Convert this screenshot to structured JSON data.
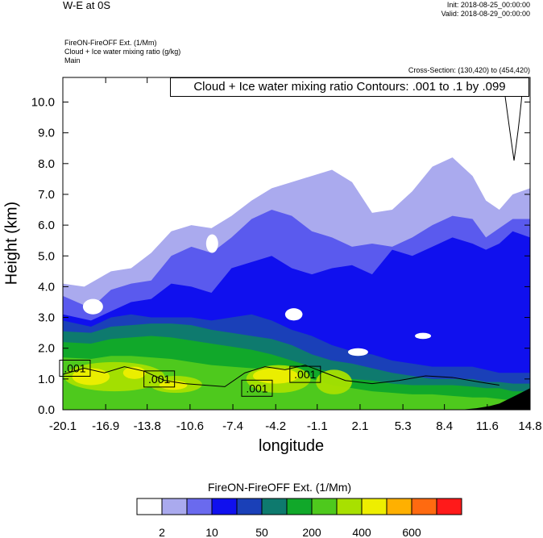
{
  "header": {
    "title": "W-E at 0S",
    "init": "Init: 2018-08-25_00:00:00",
    "valid": "Valid: 2018-08-29_00:00:00",
    "fields": [
      "FireON-FireOFF Ext.   (1/Mm)",
      "Cloud + Ice water mixing ratio   (g/kg)",
      "Main"
    ],
    "cross_section": "Cross-Section: (130,420) to (454,420)"
  },
  "chart_data": {
    "type": "heatmap",
    "title": "Cloud + Ice water mixing ratio Contours: .001 to .1 by .099",
    "xlabel": "longitude",
    "ylabel": "Height (km)",
    "xlim": [
      -20.1,
      14.8
    ],
    "ylim": [
      0.0,
      10.8
    ],
    "x_ticks": [
      "-20.1",
      "-16.9",
      "-13.8",
      "-10.6",
      "-7.4",
      "-4.2",
      "-1.1",
      "2.1",
      "5.3",
      "8.4",
      "11.6",
      "14.8"
    ],
    "y_ticks": [
      "0.0",
      "1.0",
      "2.0",
      "3.0",
      "4.0",
      "5.0",
      "6.0",
      "7.0",
      "8.0",
      "9.0",
      "10.0"
    ],
    "contour_labels": [
      {
        "text": ".001",
        "x": -19.2,
        "y": 1.35
      },
      {
        "text": ".001",
        "x": -12.9,
        "y": 1.0
      },
      {
        "text": ".001",
        "x": -5.6,
        "y": 0.7
      },
      {
        "text": ".001",
        "x": -2.0,
        "y": 1.15
      }
    ],
    "layers": [
      {
        "color": "#aaaaee",
        "top": [
          [
            -20.1,
            4.1
          ],
          [
            -18.5,
            4.0
          ],
          [
            -16.5,
            4.5
          ],
          [
            -15,
            4.6
          ],
          [
            -13.5,
            5.1
          ],
          [
            -12,
            5.8
          ],
          [
            -10.5,
            6.0
          ],
          [
            -9,
            5.9
          ],
          [
            -7.5,
            6.3
          ],
          [
            -6,
            6.8
          ],
          [
            -4.5,
            7.2
          ],
          [
            -3,
            7.4
          ],
          [
            -1.5,
            7.6
          ],
          [
            0,
            7.8
          ],
          [
            1.5,
            7.4
          ],
          [
            3,
            6.4
          ],
          [
            4.5,
            6.5
          ],
          [
            6,
            7.1
          ],
          [
            7.5,
            7.9
          ],
          [
            9,
            8.2
          ],
          [
            10.5,
            7.6
          ],
          [
            11.5,
            6.8
          ],
          [
            12.5,
            6.5
          ],
          [
            13.5,
            7.0
          ],
          [
            14.8,
            7.2
          ]
        ]
      },
      {
        "color": "#5a5aee",
        "top": [
          [
            -20.1,
            3.7
          ],
          [
            -18,
            3.3
          ],
          [
            -16.5,
            3.9
          ],
          [
            -15,
            4.1
          ],
          [
            -13.5,
            4.2
          ],
          [
            -12,
            5.0
          ],
          [
            -10.5,
            5.3
          ],
          [
            -9,
            5.1
          ],
          [
            -7.5,
            5.6
          ],
          [
            -6,
            6.2
          ],
          [
            -4.5,
            6.5
          ],
          [
            -3,
            6.3
          ],
          [
            -1.5,
            5.8
          ],
          [
            0,
            5.6
          ],
          [
            1.5,
            5.3
          ],
          [
            3,
            5.4
          ],
          [
            4.5,
            5.3
          ],
          [
            6,
            5.6
          ],
          [
            7.5,
            6.0
          ],
          [
            9,
            6.3
          ],
          [
            10.5,
            6.2
          ],
          [
            11.5,
            5.6
          ],
          [
            12.5,
            5.9
          ],
          [
            13.5,
            6.2
          ],
          [
            14.8,
            6.2
          ]
        ]
      },
      {
        "color": "#1010ee",
        "top": [
          [
            -20.1,
            3.1
          ],
          [
            -18,
            2.9
          ],
          [
            -16.5,
            3.2
          ],
          [
            -15,
            3.5
          ],
          [
            -13.5,
            3.6
          ],
          [
            -12,
            4.1
          ],
          [
            -10.5,
            4.0
          ],
          [
            -9,
            3.8
          ],
          [
            -7.5,
            4.6
          ],
          [
            -6,
            4.8
          ],
          [
            -4.5,
            5.0
          ],
          [
            -3,
            4.6
          ],
          [
            -1.5,
            4.4
          ],
          [
            0,
            4.6
          ],
          [
            1.5,
            4.7
          ],
          [
            3,
            4.4
          ],
          [
            4.5,
            5.2
          ],
          [
            6,
            5.0
          ],
          [
            7.5,
            5.3
          ],
          [
            9,
            5.6
          ],
          [
            10.5,
            5.4
          ],
          [
            11.5,
            5.2
          ],
          [
            12.5,
            5.4
          ],
          [
            13.5,
            5.8
          ],
          [
            14.8,
            5.6
          ]
        ]
      },
      {
        "color": "#1a40b8",
        "top": [
          [
            -20.1,
            2.9
          ],
          [
            -18,
            2.7
          ],
          [
            -16.5,
            3.0
          ],
          [
            -15,
            3.1
          ],
          [
            -13.5,
            3.0
          ],
          [
            -12,
            3.0
          ],
          [
            -10.5,
            3.0
          ],
          [
            -9,
            2.9
          ],
          [
            -7.5,
            3.0
          ],
          [
            -6,
            3.1
          ],
          [
            -4.5,
            2.9
          ],
          [
            -3,
            2.6
          ],
          [
            -1.5,
            2.4
          ],
          [
            0,
            2.1
          ],
          [
            1.5,
            1.9
          ],
          [
            3,
            1.8
          ],
          [
            4.5,
            1.6
          ],
          [
            6,
            1.5
          ],
          [
            7.5,
            1.4
          ],
          [
            9,
            1.4
          ],
          [
            10.5,
            1.4
          ],
          [
            11.5,
            1.3
          ],
          [
            12.5,
            1.2
          ],
          [
            13.5,
            1.2
          ],
          [
            14.8,
            1.2
          ]
        ]
      },
      {
        "color": "#0e7a6e",
        "top": [
          [
            -20.1,
            2.55
          ],
          [
            -18,
            2.5
          ],
          [
            -16.5,
            2.7
          ],
          [
            -15,
            2.75
          ],
          [
            -13.5,
            2.8
          ],
          [
            -12,
            2.8
          ],
          [
            -10.5,
            2.75
          ],
          [
            -9,
            2.6
          ],
          [
            -7.5,
            2.5
          ],
          [
            -6,
            2.4
          ],
          [
            -4.5,
            2.3
          ],
          [
            -3,
            2.1
          ],
          [
            -1.5,
            1.8
          ],
          [
            0,
            1.6
          ],
          [
            1.5,
            1.5
          ],
          [
            3,
            1.35
          ],
          [
            4.5,
            1.2
          ],
          [
            6,
            1.1
          ],
          [
            7.5,
            1.0
          ],
          [
            9,
            1.0
          ],
          [
            10.5,
            1.0
          ],
          [
            11.5,
            0.9
          ],
          [
            12.5,
            0.9
          ],
          [
            13.5,
            0.85
          ],
          [
            14.8,
            0.85
          ]
        ]
      },
      {
        "color": "#11a82a",
        "top": [
          [
            -20.1,
            2.2
          ],
          [
            -18,
            2.15
          ],
          [
            -16.5,
            2.3
          ],
          [
            -15,
            2.35
          ],
          [
            -13.5,
            2.4
          ],
          [
            -12,
            2.35
          ],
          [
            -10.5,
            2.25
          ],
          [
            -9,
            2.15
          ],
          [
            -7.5,
            2.05
          ],
          [
            -6,
            1.95
          ],
          [
            -4.5,
            1.8
          ],
          [
            -3,
            1.6
          ],
          [
            -1.5,
            1.4
          ],
          [
            0,
            1.2
          ],
          [
            1.5,
            1.0
          ],
          [
            3,
            0.95
          ],
          [
            4.5,
            0.85
          ],
          [
            6,
            0.8
          ],
          [
            7.5,
            0.8
          ],
          [
            9,
            0.8
          ],
          [
            10.5,
            0.75
          ],
          [
            11.5,
            0.7
          ],
          [
            12.5,
            0.7
          ],
          [
            13.5,
            0.6
          ],
          [
            14.8,
            0.6
          ]
        ]
      },
      {
        "color": "#4ec91d",
        "top": [
          [
            -20.1,
            1.7
          ],
          [
            -18,
            1.65
          ],
          [
            -16.5,
            1.75
          ],
          [
            -15,
            1.75
          ],
          [
            -13.5,
            1.7
          ],
          [
            -12,
            1.65
          ],
          [
            -10.5,
            1.55
          ],
          [
            -9,
            1.45
          ],
          [
            -7.5,
            1.4
          ],
          [
            -6,
            1.35
          ],
          [
            -4.5,
            1.3
          ],
          [
            -3,
            1.15
          ],
          [
            -1.5,
            1.0
          ],
          [
            0,
            0.8
          ],
          [
            1.5,
            0.7
          ],
          [
            3,
            0.6
          ],
          [
            4.5,
            0.55
          ],
          [
            6,
            0.5
          ],
          [
            7.5,
            0.5
          ],
          [
            9,
            0.45
          ],
          [
            10.5,
            0.4
          ],
          [
            11.5,
            0.4
          ],
          [
            12.5,
            0.35
          ],
          [
            13.5,
            0.3
          ],
          [
            14.8,
            0.3
          ]
        ]
      }
    ],
    "hotspots": [
      {
        "color": "#a8e000",
        "x": [
          -20.0,
          -12.5
        ],
        "y": [
          0.6,
          1.55
        ]
      },
      {
        "color": "#eeee00",
        "x": [
          -19.4,
          -16.6
        ],
        "y": [
          0.8,
          1.35
        ]
      },
      {
        "color": "#eeee00",
        "x": [
          -15.6,
          -13.9
        ],
        "y": [
          1.0,
          1.4
        ]
      },
      {
        "color": "#a8e000",
        "x": [
          -13.6,
          -9.7
        ],
        "y": [
          0.55,
          1.1
        ]
      },
      {
        "color": "#eeee00",
        "x": [
          -12.9,
          -10.8
        ],
        "y": [
          0.65,
          0.95
        ]
      },
      {
        "color": "#a8e000",
        "x": [
          -6.4,
          -1.6
        ],
        "y": [
          0.55,
          1.45
        ]
      },
      {
        "color": "#eeee00",
        "x": [
          -5.9,
          -2.5
        ],
        "y": [
          0.85,
          1.35
        ]
      },
      {
        "color": "#a8e000",
        "x": [
          -1.2,
          1.5
        ],
        "y": [
          0.5,
          1.3
        ]
      }
    ],
    "terrain": {
      "color": "#000000",
      "top": [
        [
          9.6,
          0.0
        ],
        [
          10.8,
          0.05
        ],
        [
          11.8,
          0.12
        ],
        [
          12.5,
          0.2
        ],
        [
          13.2,
          0.35
        ],
        [
          13.9,
          0.5
        ],
        [
          14.8,
          0.7
        ]
      ]
    },
    "white_gaps": [
      {
        "x": [
          -18.6,
          -17.1
        ],
        "y": [
          3.1,
          3.6
        ]
      },
      {
        "x": [
          -9.4,
          -8.5
        ],
        "y": [
          5.1,
          5.7
        ]
      },
      {
        "x": [
          -3.5,
          -2.2
        ],
        "y": [
          2.9,
          3.3
        ]
      },
      {
        "x": [
          1.2,
          2.7
        ],
        "y": [
          1.75,
          2.0
        ]
      },
      {
        "x": [
          6.2,
          7.4
        ],
        "y": [
          2.3,
          2.5
        ]
      }
    ],
    "colorbar": {
      "title": "FireON-FireOFF Ext.  (1/Mm)",
      "colors": [
        "#ffffff",
        "#aaaaee",
        "#6a6aee",
        "#1010ee",
        "#1a40b8",
        "#0e7a6e",
        "#11a82a",
        "#4ec91d",
        "#a8e000",
        "#eeee00",
        "#ffb000",
        "#ff6a10",
        "#ff1a1a"
      ],
      "labels": [
        "2",
        "10",
        "50",
        "200",
        "400",
        "600"
      ],
      "label_boundaries": [
        1,
        3,
        5,
        7,
        9,
        11
      ]
    }
  }
}
